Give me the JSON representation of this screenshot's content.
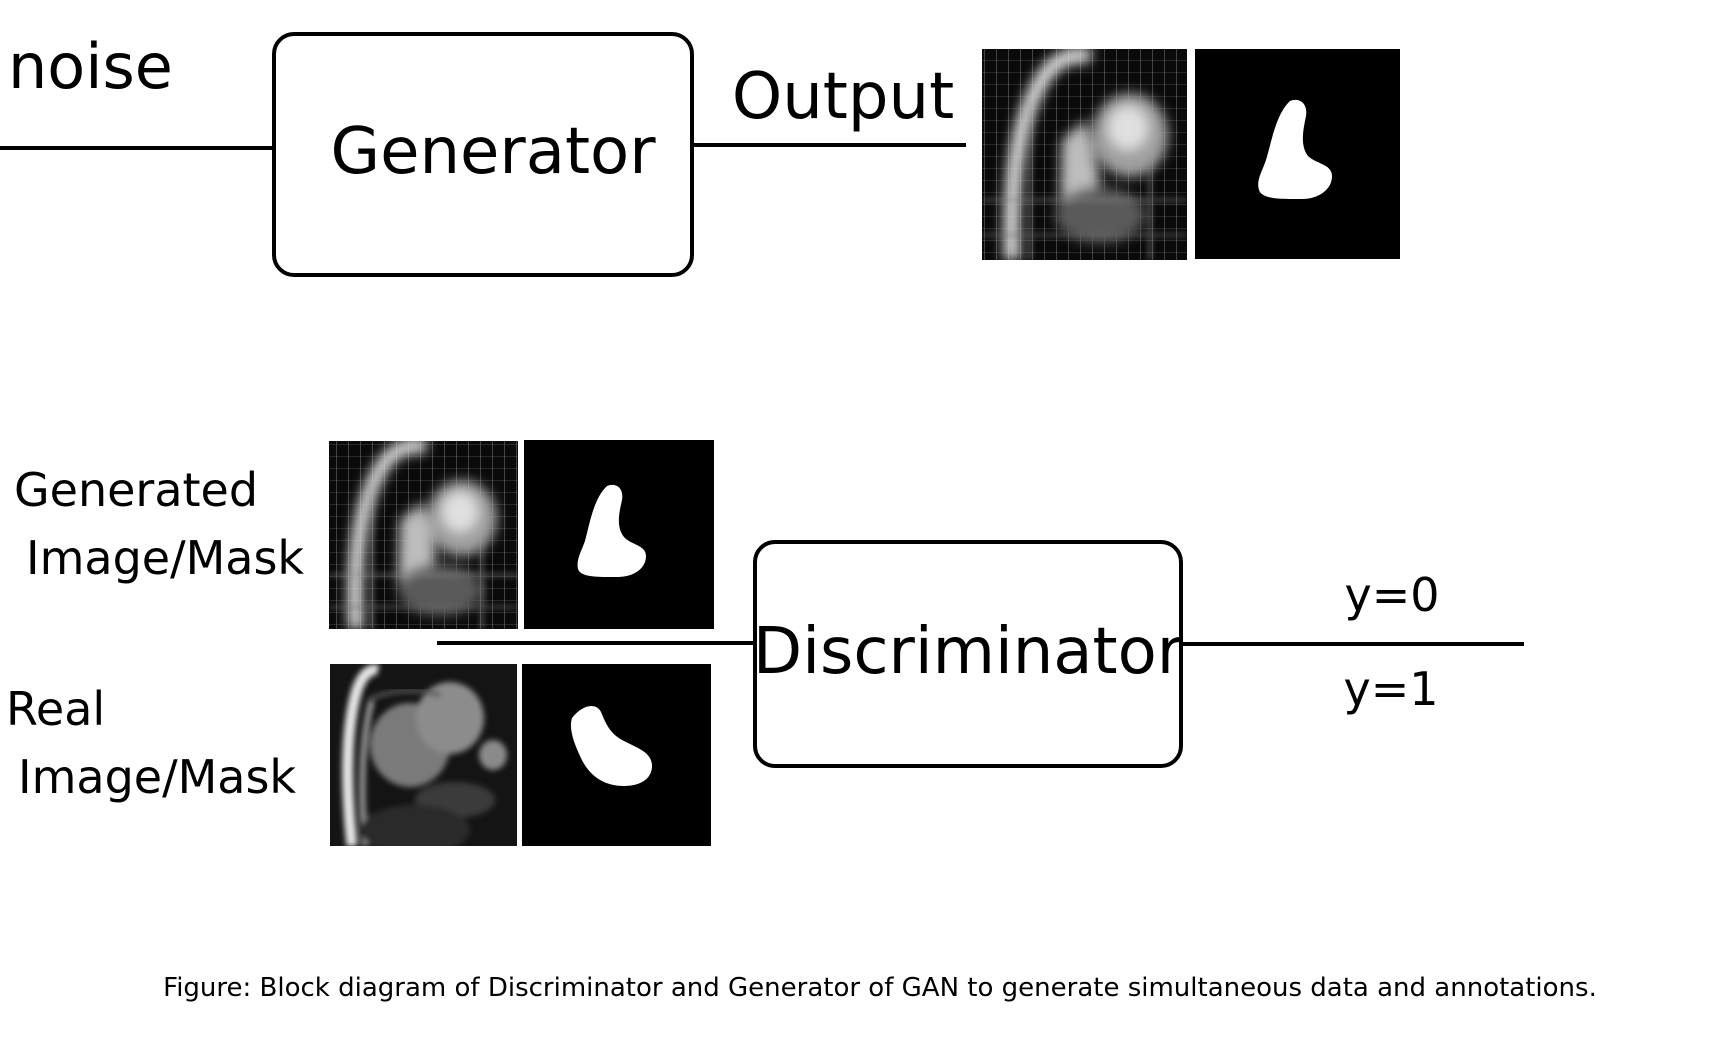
{
  "labels": {
    "noise": "noise",
    "generator": "Generator",
    "output": "Output",
    "generated_line1": "Generated",
    "generated_line2": "Image/Mask",
    "real_line1": "Real",
    "real_line2": "Image/Mask",
    "discriminator": "Discriminator",
    "y0": "y=0",
    "y1": "y=1"
  },
  "caption": "Figure: Block diagram of Discriminator and Generator of GAN to generate simultaneous data and annotations.",
  "colors": {
    "stroke": "#000000",
    "text": "#000000",
    "background": "#ffffff",
    "image_black": "#000000",
    "mask_white": "#ffffff"
  },
  "icons": {
    "generated_mri": "generated-mri-thumbnail",
    "generated_mask": "generated-mask-thumbnail",
    "real_mri": "real-mri-thumbnail",
    "real_mask": "real-mask-thumbnail"
  }
}
